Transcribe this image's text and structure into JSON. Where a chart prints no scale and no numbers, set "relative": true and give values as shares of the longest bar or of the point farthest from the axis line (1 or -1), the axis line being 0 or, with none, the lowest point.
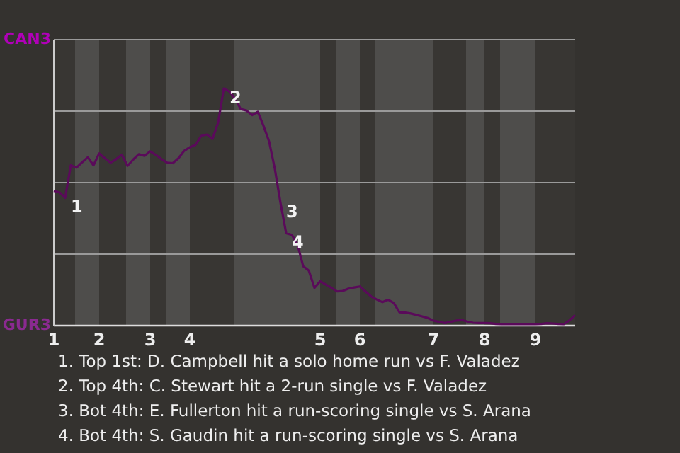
{
  "chart_data": {
    "type": "line",
    "relative": true,
    "categories": [
      "1",
      null,
      null,
      null,
      null,
      null,
      null,
      null,
      "2",
      null,
      null,
      null,
      null,
      null,
      null,
      null,
      null,
      "3",
      null,
      null,
      null,
      null,
      null,
      null,
      "4",
      null,
      null,
      null,
      null,
      null,
      null,
      null,
      null,
      null,
      null,
      null,
      null,
      null,
      null,
      null,
      null,
      null,
      null,
      null,
      null,
      null,
      null,
      "5",
      null,
      null,
      null,
      null,
      null,
      null,
      "6",
      null,
      null,
      null,
      null,
      null,
      null,
      null,
      null,
      null,
      null,
      null,
      null,
      "7",
      null,
      null,
      null,
      null,
      null,
      null,
      null,
      null,
      "8",
      null,
      null,
      null,
      null,
      null,
      null,
      null,
      null,
      "9",
      null,
      null,
      null,
      null,
      null,
      null,
      null
    ],
    "series": [
      {
        "color": "#5a0a5a",
        "values": [
          0.568,
          0.562,
          0.539,
          0.676,
          0.666,
          0.689,
          0.71,
          0.676,
          0.726,
          0.706,
          0.687,
          0.702,
          0.721,
          0.674,
          0.7,
          0.723,
          0.716,
          0.735,
          0.72,
          0.702,
          0.687,
          0.685,
          0.706,
          0.737,
          0.752,
          0.762,
          0.8,
          0.806,
          0.787,
          0.857,
          1,
          0.987,
          0.956,
          0.913,
          0.907,
          0.888,
          0.902,
          0.843,
          0.776,
          0.662,
          0.518,
          0.39,
          0.383,
          0.343,
          0.251,
          0.232,
          0.159,
          0.187,
          0.173,
          0.159,
          0.144,
          0.146,
          0.156,
          0.161,
          0.165,
          0.144,
          0.123,
          0.11,
          0.099,
          0.109,
          0.095,
          0.056,
          0.055,
          0.051,
          0.045,
          0.039,
          0.032,
          0.021,
          0.016,
          0.011,
          0.016,
          0.021,
          0.023,
          0.017,
          0.012,
          0.011,
          0.011,
          0.01,
          0.007,
          0.006,
          0.006,
          0.006,
          0.006,
          0.006,
          0.006,
          0.006,
          0.007,
          0.01,
          0.009,
          0.007,
          0.006,
          0.022,
          0.044
        ]
      }
    ],
    "grid": "y",
    "marker": "none",
    "annotations": [
      "CAN3",
      "GUR3",
      "1",
      "2",
      "3",
      "4",
      "1. Top 1st: D. Campbell hit a solo home run vs F. Valadez",
      "2. Top 4th: C. Stewart hit a 2-run single vs F. Valadez",
      "3. Bot 4th: E. Fullerton hit a run-scoring single vs S. Arana",
      "4. Bot 4th: S. Gaudin hit a run-scoring single vs S. Arana"
    ]
  }
}
